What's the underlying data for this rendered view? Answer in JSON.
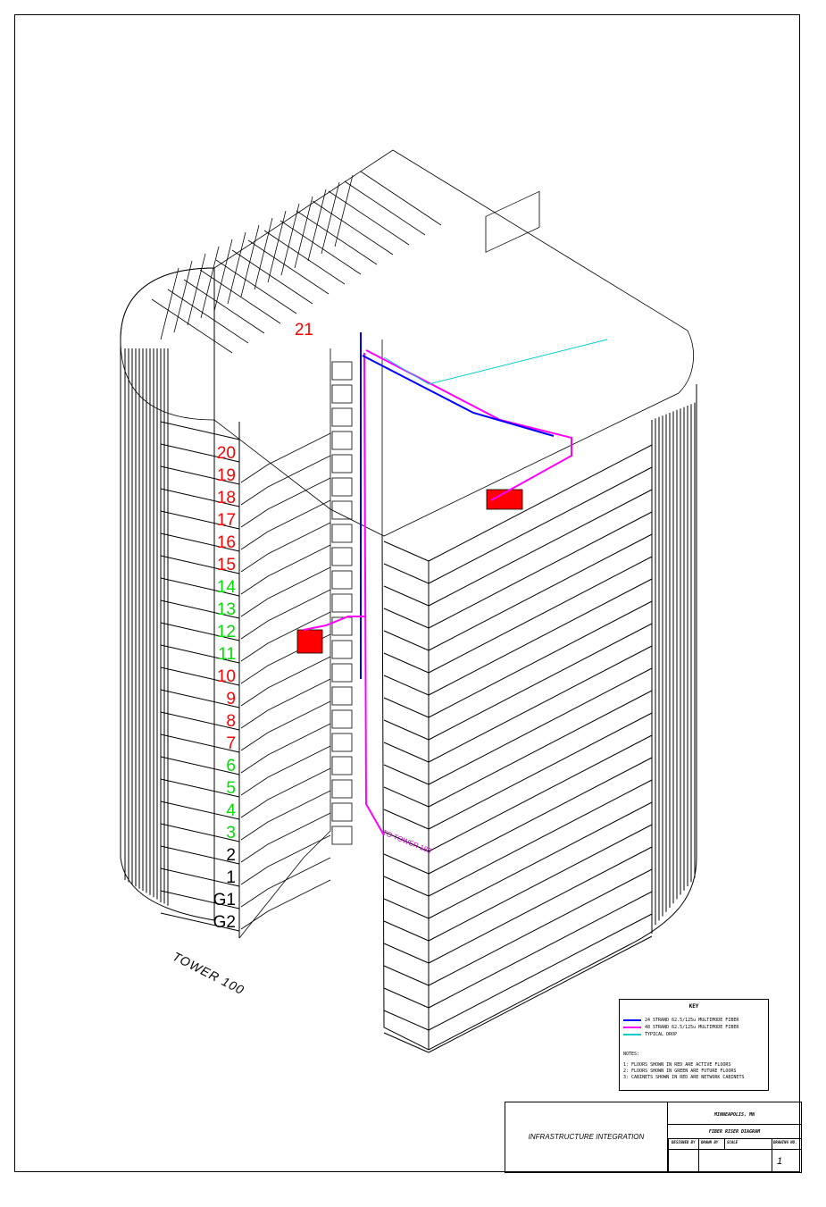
{
  "drawing": {
    "building_name": "TOWER 100",
    "floors": [
      {
        "label": "20",
        "status": "active"
      },
      {
        "label": "19",
        "status": "active"
      },
      {
        "label": "18",
        "status": "active"
      },
      {
        "label": "17",
        "status": "active"
      },
      {
        "label": "16",
        "status": "active"
      },
      {
        "label": "15",
        "status": "active"
      },
      {
        "label": "14",
        "status": "future"
      },
      {
        "label": "13",
        "status": "future"
      },
      {
        "label": "12",
        "status": "future"
      },
      {
        "label": "11",
        "status": "future"
      },
      {
        "label": "10",
        "status": "active"
      },
      {
        "label": "9",
        "status": "active"
      },
      {
        "label": "8",
        "status": "active"
      },
      {
        "label": "7",
        "status": "active"
      },
      {
        "label": "6",
        "status": "future"
      },
      {
        "label": "5",
        "status": "future"
      },
      {
        "label": "4",
        "status": "future"
      },
      {
        "label": "3",
        "status": "future"
      },
      {
        "label": "2",
        "status": "existing"
      },
      {
        "label": "1",
        "status": "existing"
      },
      {
        "label": "G1",
        "status": "existing"
      },
      {
        "label": "G2",
        "status": "existing"
      }
    ],
    "top_floor_label": "21",
    "riser_tag": "TO TOWER 180",
    "colors": {
      "active": "#ff0000",
      "future": "#00dd00",
      "existing": "#000000",
      "fiber_24": "#0000ff",
      "fiber_48": "#ff00ff",
      "drop": "#00cccc",
      "cabinet": "#ff0000"
    }
  },
  "key": {
    "title": "KEY",
    "items": [
      {
        "label": "24 STRAND 62.5/125u MULTIMODE FIBER",
        "color": "#0000ff"
      },
      {
        "label": "48 STRAND 62.5/125u MULTIMODE FIBER",
        "color": "#ff00ff"
      },
      {
        "label": "TYPICAL DROP",
        "color": "#00cccc"
      }
    ],
    "notes_title": "NOTES:",
    "notes": [
      "1: FLOORS SHOWN IN RED ARE ACTIVE FLOORS",
      "2: FLOORS SHOWN IN GREEN ARE FUTURE FLOORS",
      "3: CABINETS SHOWN IN RED ARE NETWORK CABINETS"
    ]
  },
  "title_block": {
    "company": "INFRASTRUCTURE INTEGRATION",
    "location": "MINNEAPOLIS, MN",
    "drawing_title": "FIBER RISER DIAGRAM",
    "cells": [
      "DESIGNED BY",
      "DRAWN BY",
      "SCALE",
      "DRAWING NO."
    ],
    "sheet_number": "1"
  }
}
